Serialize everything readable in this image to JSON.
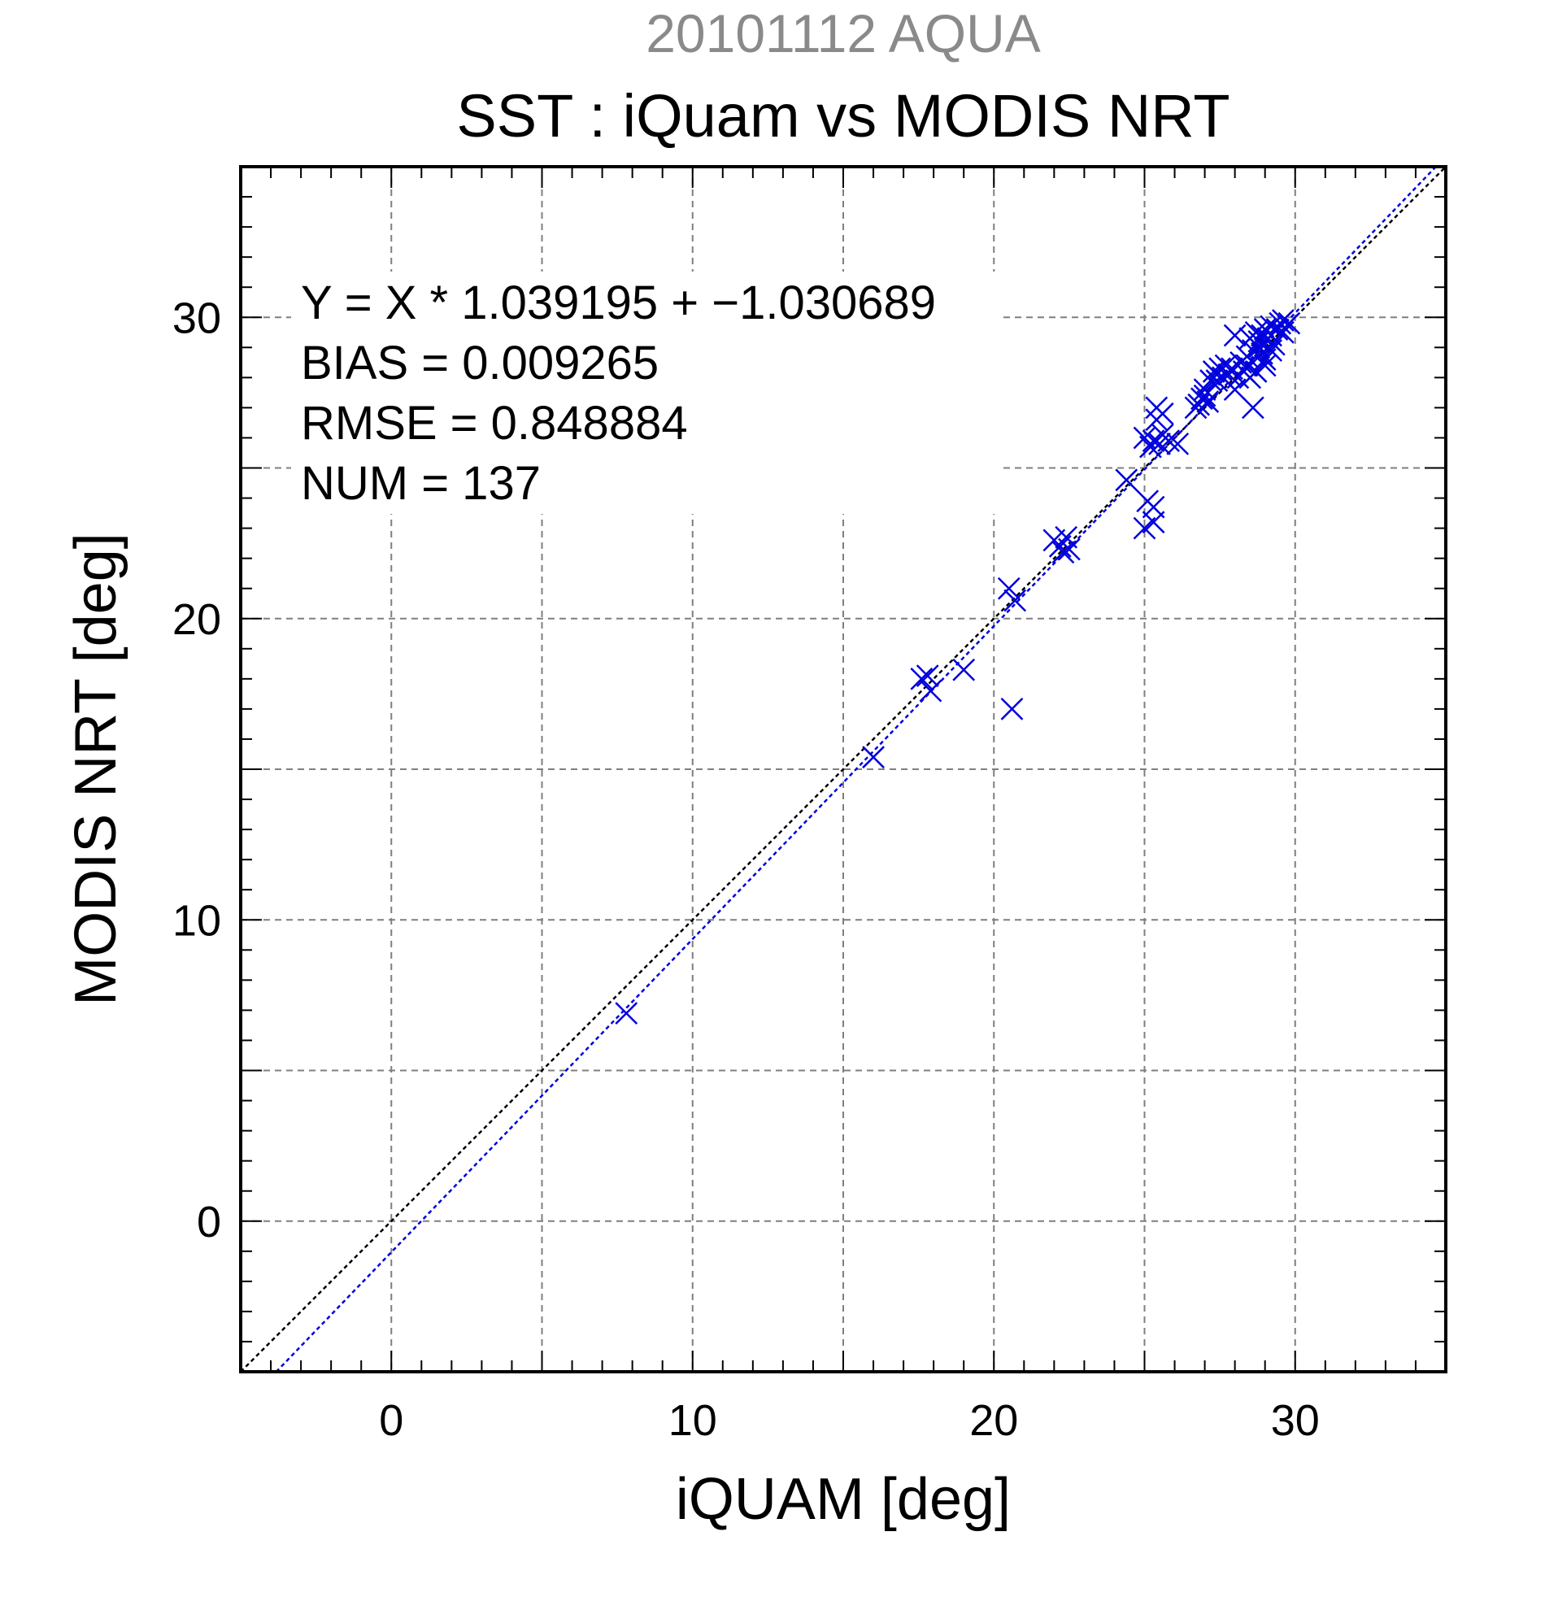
{
  "chart_data": {
    "type": "scatter",
    "supertitle": "20101112 AQUA",
    "title": "SST : iQuam vs MODIS NRT",
    "xlabel": "iQUAM [deg]",
    "ylabel": "MODIS NRT [deg]",
    "xlim": [
      -5,
      35
    ],
    "ylim": [
      -5,
      35
    ],
    "xticks": [
      0,
      10,
      20,
      30
    ],
    "yticks": [
      0,
      10,
      20,
      30
    ],
    "xtick_labels": [
      "0",
      "10",
      "20",
      "30"
    ],
    "ytick_labels": [
      "0",
      "10",
      "20",
      "30"
    ],
    "grid": true,
    "grid_step": 5,
    "minor_tick_step": 1,
    "stats": {
      "fit_line": "Y = X * 1.039195 + −1.030689",
      "bias_line": "BIAS = 0.009265",
      "rmse_line": "RMSE = 0.848884",
      "num_line": "NUM = 137"
    },
    "lines": [
      {
        "kind": "identity",
        "slope": 1,
        "intercept": 0,
        "color": "#000000",
        "dashed": true
      },
      {
        "kind": "regression",
        "slope": 1.039195,
        "intercept": -1.030689,
        "color": "#0000dd",
        "dashed": true
      }
    ],
    "marker": "x",
    "marker_color": "#0000dd",
    "points": [
      [
        7.8,
        6.9
      ],
      [
        16.0,
        15.4
      ],
      [
        17.6,
        18.0
      ],
      [
        17.8,
        18.1
      ],
      [
        17.9,
        17.6
      ],
      [
        19.0,
        18.3
      ],
      [
        20.6,
        17.0
      ],
      [
        20.5,
        21.0
      ],
      [
        20.7,
        20.6
      ],
      [
        22.0,
        22.6
      ],
      [
        22.2,
        22.4
      ],
      [
        22.3,
        22.2
      ],
      [
        22.4,
        22.7
      ],
      [
        22.5,
        22.3
      ],
      [
        24.4,
        24.6
      ],
      [
        25.0,
        23.0
      ],
      [
        25.1,
        23.9
      ],
      [
        25.3,
        23.2
      ],
      [
        25.3,
        23.7
      ],
      [
        25.0,
        26.0
      ],
      [
        25.2,
        25.7
      ],
      [
        25.3,
        25.9
      ],
      [
        25.5,
        25.8
      ],
      [
        25.6,
        26.1
      ],
      [
        25.4,
        27.0
      ],
      [
        25.6,
        26.8
      ],
      [
        25.4,
        26.6
      ],
      [
        25.8,
        25.9
      ],
      [
        26.1,
        25.8
      ],
      [
        26.8,
        27.1
      ],
      [
        26.9,
        27.3
      ],
      [
        27.0,
        27.4
      ],
      [
        27.1,
        27.2
      ],
      [
        27.0,
        27.6
      ],
      [
        27.3,
        28.2
      ],
      [
        27.5,
        28.3
      ],
      [
        27.6,
        28.0
      ],
      [
        27.4,
        27.9
      ],
      [
        27.7,
        28.4
      ],
      [
        27.8,
        28.1
      ],
      [
        28.0,
        29.4
      ],
      [
        28.0,
        27.6
      ],
      [
        28.2,
        28.5
      ],
      [
        28.3,
        28.2
      ],
      [
        28.4,
        28.7
      ],
      [
        28.4,
        28.4
      ],
      [
        28.6,
        28.9
      ],
      [
        28.6,
        27.0
      ],
      [
        28.7,
        28.2
      ],
      [
        28.5,
        29.3
      ],
      [
        28.7,
        29.5
      ],
      [
        28.8,
        29.2
      ],
      [
        28.9,
        28.8
      ],
      [
        29.0,
        29.6
      ],
      [
        29.0,
        28.6
      ],
      [
        29.1,
        29.0
      ],
      [
        29.1,
        29.3
      ],
      [
        29.2,
        29.7
      ],
      [
        29.2,
        29.4
      ],
      [
        29.3,
        29.1
      ],
      [
        29.4,
        29.6
      ],
      [
        29.5,
        29.8
      ],
      [
        29.6,
        29.5
      ],
      [
        29.6,
        29.9
      ],
      [
        29.8,
        29.8
      ],
      [
        28.8,
        29.0
      ],
      [
        29.0,
        28.4
      ],
      [
        28.9,
        29.4
      ],
      [
        29.2,
        28.9
      ],
      [
        27.9,
        28.3
      ],
      [
        28.1,
        28.0
      ],
      [
        28.5,
        28.0
      ],
      [
        26.7,
        27.0
      ],
      [
        27.2,
        27.9
      ]
    ]
  }
}
